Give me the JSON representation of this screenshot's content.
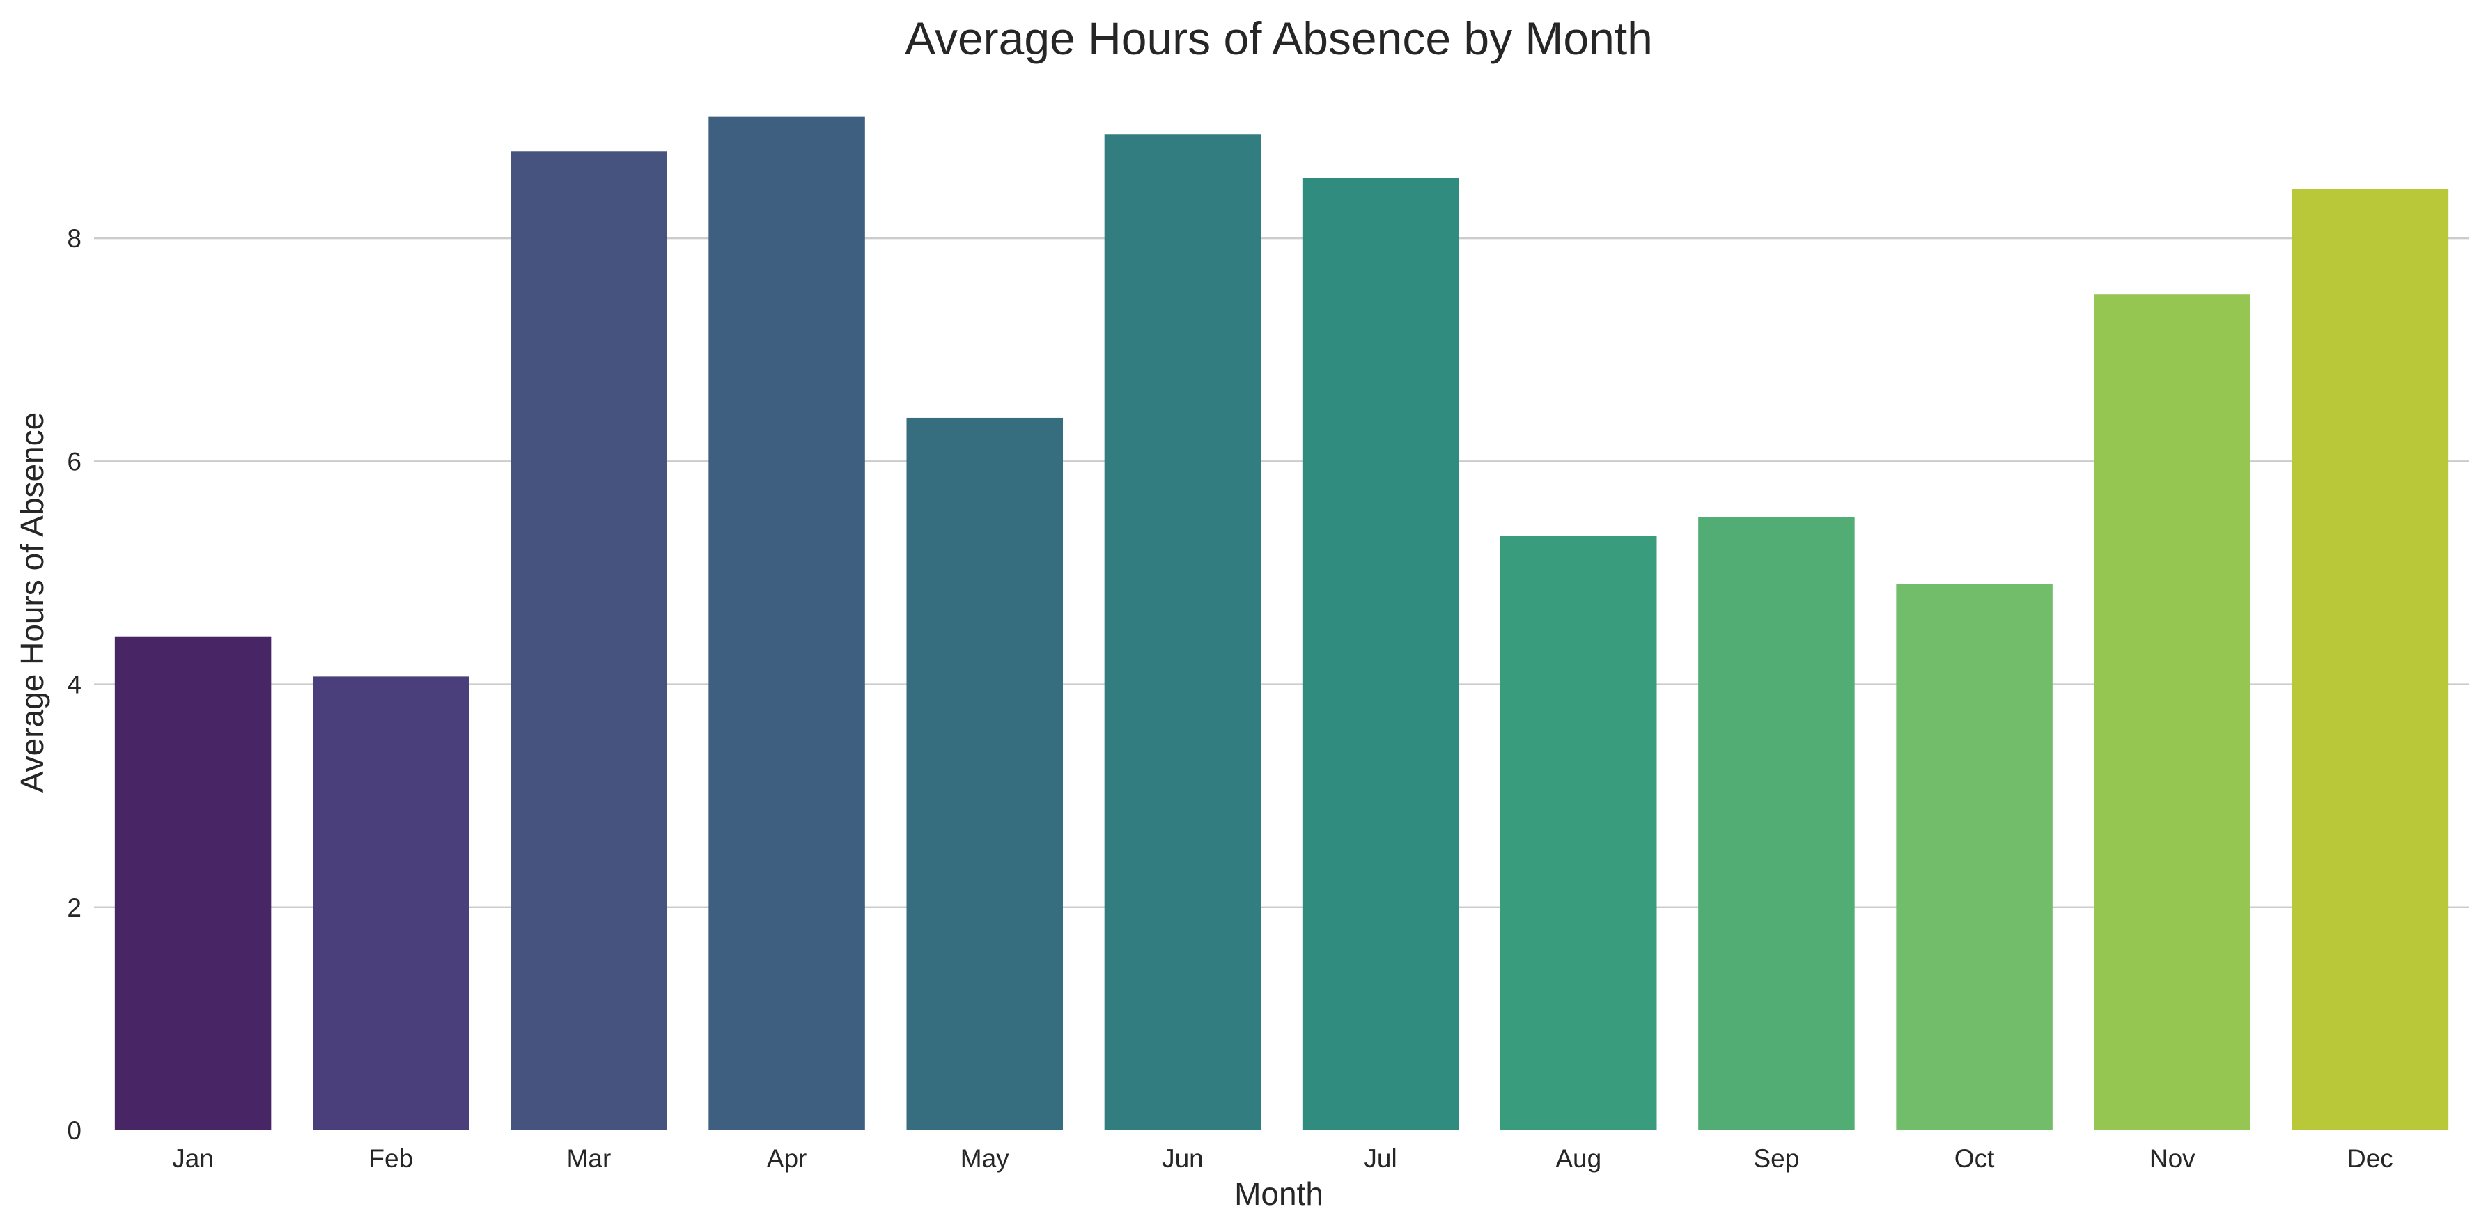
{
  "chart_data": {
    "type": "bar",
    "title": "Average Hours of Absence by Month",
    "xlabel": "Month",
    "ylabel": "Average Hours of Absence",
    "categories": [
      "Jan",
      "Feb",
      "Mar",
      "Apr",
      "May",
      "Jun",
      "Jul",
      "Aug",
      "Sep",
      "Oct",
      "Nov",
      "Dec"
    ],
    "values": [
      4.43,
      4.07,
      8.78,
      9.09,
      6.39,
      8.93,
      8.54,
      5.33,
      5.5,
      4.9,
      7.5,
      8.44
    ],
    "colors": [
      "#482665",
      "#4a3f7a",
      "#46537f",
      "#3e5f80",
      "#376e7f",
      "#327d80",
      "#2f8c7e",
      "#399c7c",
      "#52ad74",
      "#72bd6a",
      "#95c652",
      "#b8c838"
    ],
    "ylim": [
      0,
      9.45
    ],
    "yticks": [
      0,
      2,
      4,
      6,
      8
    ],
    "grid": "y",
    "legend": "none"
  }
}
